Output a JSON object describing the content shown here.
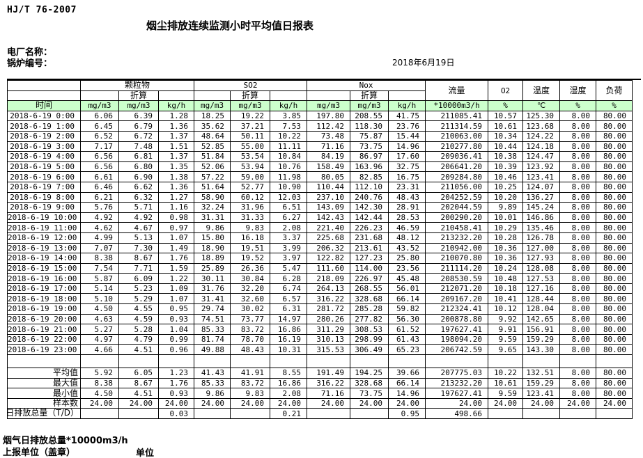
{
  "page": {
    "standard_code": "HJ/T  76-2007",
    "title": "烟尘排放连续监测小时平均值日报表",
    "plant_name_label": "电厂名称：",
    "boiler_no_label": "锅炉编号：",
    "date": "2018年6月19日"
  },
  "colors": {
    "header_green": "#ccffcc"
  },
  "table": {
    "header": {
      "time": "时间",
      "groups": [
        {
          "label": "颗粒物",
          "converted": "折算",
          "units": [
            "mg/m3",
            "mg/m3",
            "kg/h"
          ]
        },
        {
          "label": "SO2",
          "converted": "折算",
          "units": [
            "mg/m3",
            "mg/m3",
            "kg/h"
          ]
        },
        {
          "label": "Nox",
          "converted": "折算",
          "units": [
            "mg/m3",
            "mg/m3",
            "kg/h"
          ]
        }
      ],
      "singles": [
        {
          "label": "流量",
          "unit": "*10000m3/h"
        },
        {
          "label": "O2",
          "unit": "%"
        },
        {
          "label": "温度",
          "unit": "℃"
        },
        {
          "label": "湿度",
          "unit": "%"
        },
        {
          "label": "负荷",
          "unit": "%"
        }
      ]
    },
    "rows": [
      [
        "2018-6-19 0:00",
        "6.06",
        "6.39",
        "1.28",
        "18.25",
        "19.22",
        "3.85",
        "197.80",
        "208.55",
        "41.75",
        "211085.41",
        "10.57",
        "125.30",
        "8.00",
        "80.00"
      ],
      [
        "2018-6-19 1:00",
        "6.45",
        "6.79",
        "1.36",
        "35.62",
        "37.21",
        "7.53",
        "112.42",
        "118.30",
        "23.76",
        "211314.59",
        "10.61",
        "123.68",
        "8.00",
        "80.00"
      ],
      [
        "2018-6-19 2:00",
        "6.52",
        "6.72",
        "1.37",
        "48.64",
        "50.11",
        "10.22",
        "73.48",
        "75.87",
        "15.44",
        "210063.00",
        "10.34",
        "124.22",
        "8.00",
        "80.00"
      ],
      [
        "2018-6-19 3:00",
        "7.17",
        "7.48",
        "1.51",
        "52.85",
        "55.00",
        "11.11",
        "71.16",
        "73.75",
        "14.96",
        "210277.80",
        "10.44",
        "124.18",
        "8.00",
        "80.00"
      ],
      [
        "2018-6-19 4:00",
        "6.56",
        "6.81",
        "1.37",
        "51.84",
        "53.54",
        "10.84",
        "84.19",
        "86.97",
        "17.60",
        "209036.41",
        "10.38",
        "124.47",
        "8.00",
        "80.00"
      ],
      [
        "2018-6-19 5:00",
        "6.56",
        "6.80",
        "1.35",
        "52.06",
        "53.94",
        "10.76",
        "158.49",
        "163.96",
        "32.75",
        "206641.20",
        "10.39",
        "123.92",
        "8.00",
        "80.00"
      ],
      [
        "2018-6-19 6:00",
        "6.61",
        "6.90",
        "1.38",
        "57.22",
        "59.00",
        "11.98",
        "80.05",
        "82.85",
        "16.75",
        "209284.80",
        "10.46",
        "123.41",
        "8.00",
        "80.00"
      ],
      [
        "2018-6-19 7:00",
        "6.46",
        "6.62",
        "1.36",
        "51.64",
        "52.77",
        "10.90",
        "110.44",
        "112.10",
        "23.31",
        "211056.00",
        "10.25",
        "124.07",
        "8.00",
        "80.00"
      ],
      [
        "2018-6-19 8:00",
        "6.21",
        "6.32",
        "1.27",
        "58.90",
        "60.12",
        "12.03",
        "237.10",
        "240.76",
        "48.43",
        "204252.59",
        "10.20",
        "136.27",
        "8.00",
        "80.00"
      ],
      [
        "2018-6-19 9:00",
        "5.76",
        "5.71",
        "1.16",
        "32.24",
        "31.96",
        "6.51",
        "143.09",
        "142.30",
        "28.91",
        "202044.59",
        "9.89",
        "145.24",
        "8.00",
        "80.00"
      ],
      [
        "2018-6-19 10:00",
        "4.92",
        "4.92",
        "0.98",
        "31.31",
        "31.33",
        "6.27",
        "142.43",
        "142.44",
        "28.53",
        "200290.20",
        "10.01",
        "146.86",
        "8.00",
        "80.00"
      ],
      [
        "2018-6-19 11:00",
        "4.62",
        "4.67",
        "0.97",
        "9.86",
        "9.83",
        "2.08",
        "221.40",
        "226.23",
        "46.59",
        "210458.41",
        "10.29",
        "135.46",
        "8.00",
        "80.00"
      ],
      [
        "2018-6-19 12:00",
        "4.99",
        "5.13",
        "1.07",
        "15.80",
        "16.18",
        "3.37",
        "225.68",
        "231.68",
        "48.12",
        "213232.20",
        "10.28",
        "126.78",
        "8.00",
        "80.00"
      ],
      [
        "2018-6-19 13:00",
        "7.07",
        "7.30",
        "1.49",
        "18.90",
        "19.51",
        "3.99",
        "206.32",
        "213.61",
        "43.52",
        "210942.00",
        "10.36",
        "127.00",
        "8.00",
        "80.00"
      ],
      [
        "2018-6-19 14:00",
        "8.38",
        "8.67",
        "1.76",
        "18.89",
        "19.52",
        "3.97",
        "122.82",
        "127.23",
        "25.80",
        "210070.80",
        "10.36",
        "127.93",
        "8.00",
        "80.00"
      ],
      [
        "2018-6-19 15:00",
        "7.54",
        "7.71",
        "1.59",
        "25.89",
        "26.36",
        "5.47",
        "111.60",
        "114.00",
        "23.56",
        "211114.20",
        "10.24",
        "128.08",
        "8.00",
        "80.00"
      ],
      [
        "2018-6-19 16:00",
        "5.87",
        "6.09",
        "1.22",
        "30.11",
        "30.84",
        "6.28",
        "218.09",
        "226.97",
        "45.48",
        "208530.59",
        "10.48",
        "127.53",
        "8.00",
        "80.00"
      ],
      [
        "2018-6-19 17:00",
        "5.14",
        "5.23",
        "1.09",
        "31.76",
        "32.20",
        "6.74",
        "264.13",
        "268.55",
        "56.01",
        "212071.20",
        "10.18",
        "127.16",
        "8.00",
        "80.00"
      ],
      [
        "2018-6-19 18:00",
        "5.10",
        "5.29",
        "1.07",
        "31.41",
        "32.60",
        "6.57",
        "316.22",
        "328.68",
        "66.14",
        "209167.20",
        "10.41",
        "128.44",
        "8.00",
        "80.00"
      ],
      [
        "2018-6-19 19:00",
        "4.50",
        "4.55",
        "0.95",
        "29.74",
        "30.02",
        "6.31",
        "281.72",
        "285.28",
        "59.82",
        "212324.41",
        "10.12",
        "128.04",
        "8.00",
        "80.00"
      ],
      [
        "2018-6-19 20:00",
        "4.63",
        "4.59",
        "0.93",
        "74.51",
        "73.77",
        "14.97",
        "280.26",
        "277.82",
        "56.30",
        "200878.80",
        "9.92",
        "142.65",
        "8.00",
        "80.00"
      ],
      [
        "2018-6-19 21:00",
        "5.27",
        "5.28",
        "1.04",
        "85.33",
        "83.72",
        "16.86",
        "311.29",
        "308.53",
        "61.52",
        "197627.41",
        "9.91",
        "156.91",
        "8.00",
        "80.00"
      ],
      [
        "2018-6-19 22:00",
        "4.97",
        "4.79",
        "0.99",
        "81.74",
        "78.70",
        "16.19",
        "310.13",
        "298.99",
        "61.43",
        "198094.20",
        "9.59",
        "159.29",
        "8.00",
        "80.00"
      ],
      [
        "2018-6-19 23:00",
        "4.66",
        "4.51",
        "0.96",
        "49.88",
        "48.43",
        "10.31",
        "315.53",
        "306.49",
        "65.23",
        "206742.59",
        "9.65",
        "143.30",
        "8.00",
        "80.00"
      ]
    ],
    "summary": [
      {
        "label": "平均值",
        "values": [
          "5.92",
          "6.05",
          "1.23",
          "41.43",
          "41.91",
          "8.55",
          "191.49",
          "194.25",
          "39.66",
          "207775.03",
          "10.22",
          "132.51",
          "8.00",
          "80.00"
        ]
      },
      {
        "label": "最大值",
        "values": [
          "8.38",
          "8.67",
          "1.76",
          "85.33",
          "83.72",
          "16.86",
          "316.22",
          "328.68",
          "66.14",
          "213232.20",
          "10.61",
          "159.29",
          "8.00",
          "80.00"
        ]
      },
      {
        "label": "最小值",
        "values": [
          "4.50",
          "4.51",
          "0.93",
          "9.86",
          "9.83",
          "2.08",
          "71.16",
          "73.75",
          "14.96",
          "197627.41",
          "9.59",
          "123.41",
          "8.00",
          "80.00"
        ]
      },
      {
        "label": "样本数",
        "values": [
          "24.00",
          "24.00",
          "24.00",
          "24.00",
          "24.00",
          "24.00",
          "24.00",
          "24.00",
          "24.00",
          "24.00",
          "24.00",
          "24.00",
          "24.00",
          "24.00"
        ]
      }
    ],
    "daily_total": {
      "label": "日排放总量（T/D）",
      "values": [
        "",
        "",
        "0.03",
        "",
        "",
        "0.21",
        "",
        "",
        "0.95",
        "498.66",
        "",
        "",
        "",
        ""
      ]
    }
  },
  "footer": {
    "flue_gas_note": "烟气日排放总量*10000m3/h",
    "report_unit_label": "上报单位（盖章）",
    "unit_label": "单位"
  }
}
